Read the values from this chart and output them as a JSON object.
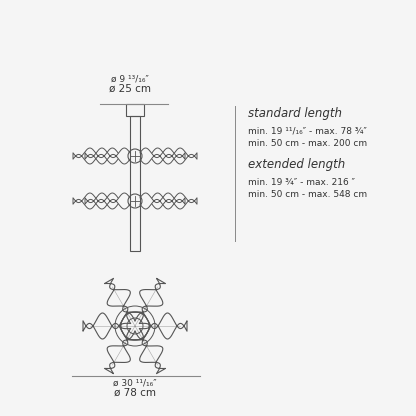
{
  "bg_color": "#f5f5f5",
  "line_color": "#555555",
  "text_color": "#333333",
  "title_texts": {
    "top_label1": "ø 9 ¹³/₁₆″",
    "top_label2": "ø 25 cm",
    "bottom_label1": "ø 30 ¹¹/₁₆″",
    "bottom_label2": "ø 78 cm",
    "standard_title": "standard length",
    "standard_line1": "min. 19 ¹¹/₁₆″ - max. 78 ¾″",
    "standard_line2": "min. 50 cm - max. 200 cm",
    "extended_title": "extended length",
    "extended_line1": "min. 19 ¾″ - max. 216 ″",
    "extended_line2": "min. 50 cm - max. 548 cm"
  },
  "dim_line_color": "#888888"
}
